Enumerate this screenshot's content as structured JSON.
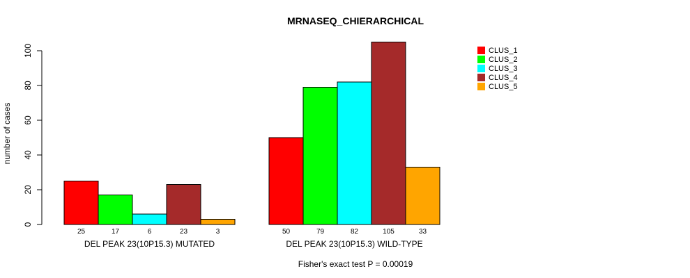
{
  "chart_data": {
    "type": "bar",
    "title": "MRNASEQ_CHIERARCHICAL",
    "ylabel": "number of cases",
    "xlabel": "",
    "ylim": [
      0,
      105
    ],
    "yticks": [
      0,
      20,
      40,
      60,
      80,
      100
    ],
    "footnote": "Fisher's exact test P = 0.00019",
    "groups": [
      "DEL PEAK 23(10P15.3) MUTATED",
      "DEL PEAK 23(10P15.3) WILD-TYPE"
    ],
    "series": [
      {
        "name": "CLUS_1",
        "color": "#ff0000",
        "values": [
          25,
          50
        ]
      },
      {
        "name": "CLUS_2",
        "color": "#00ff00",
        "values": [
          17,
          79
        ]
      },
      {
        "name": "CLUS_3",
        "color": "#00ffff",
        "values": [
          6,
          82
        ]
      },
      {
        "name": "CLUS_4",
        "color": "#a52a2a",
        "values": [
          23,
          105
        ]
      },
      {
        "name": "CLUS_5",
        "color": "#ffa500",
        "values": [
          3,
          33
        ]
      }
    ],
    "legend_position": "top-right"
  }
}
